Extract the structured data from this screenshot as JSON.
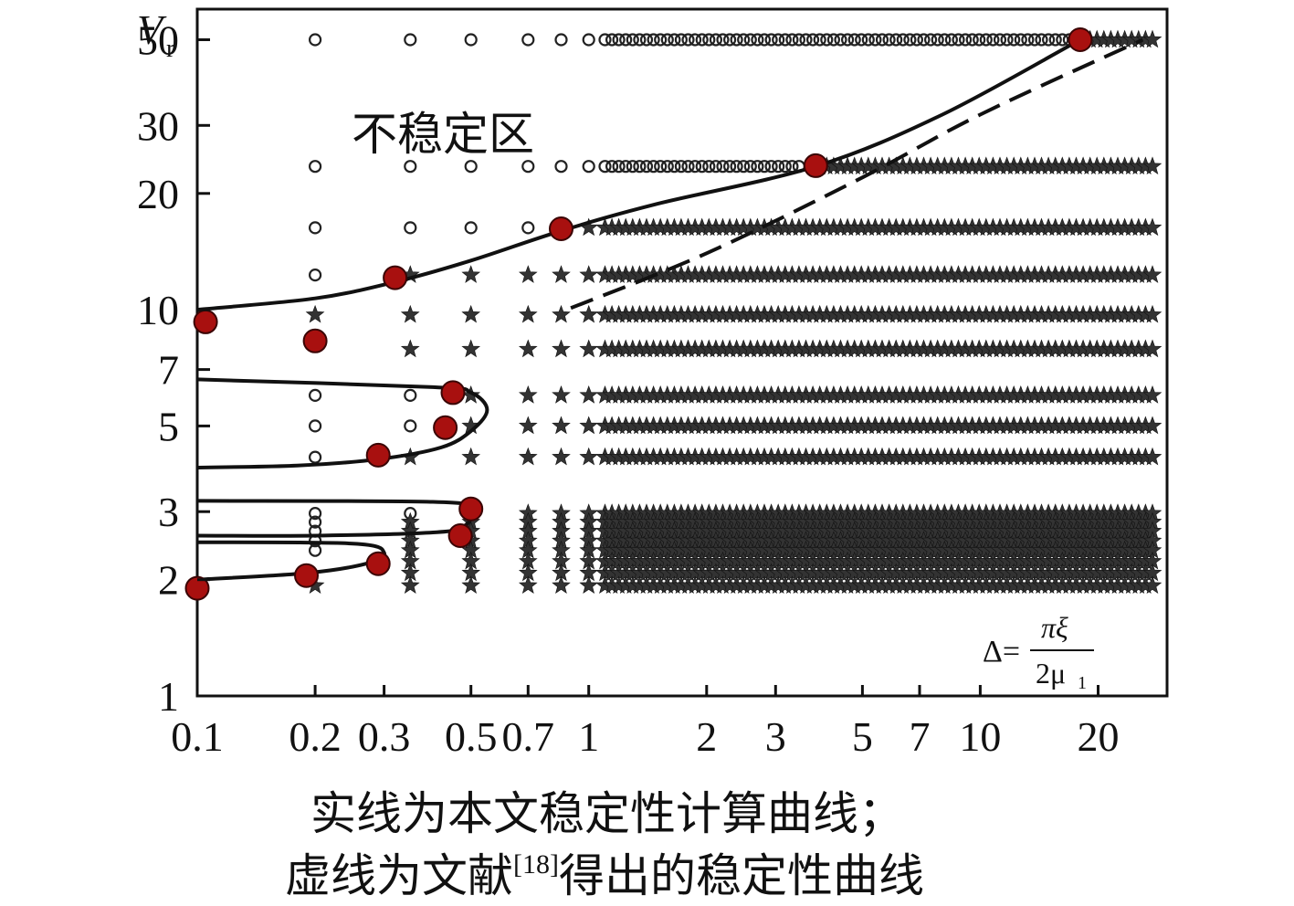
{
  "chart_data": {
    "type": "scatter",
    "x_scale": "log",
    "y_scale": "log",
    "xlim": [
      0.1,
      30
    ],
    "ylim": [
      1,
      60
    ],
    "ylabel_main": "V",
    "ylabel_sub": "r",
    "x_ticks": [
      {
        "value": 0.1,
        "label": "0.1"
      },
      {
        "value": 0.2,
        "label": "0.2"
      },
      {
        "value": 0.3,
        "label": "0.3"
      },
      {
        "value": 0.5,
        "label": "0.5"
      },
      {
        "value": 0.7,
        "label": "0.7"
      },
      {
        "value": 1,
        "label": "1"
      },
      {
        "value": 2,
        "label": "2"
      },
      {
        "value": 3,
        "label": "3"
      },
      {
        "value": 5,
        "label": "5"
      },
      {
        "value": 7,
        "label": "7"
      },
      {
        "value": 10,
        "label": "10"
      },
      {
        "value": 20,
        "label": "20"
      }
    ],
    "y_ticks": [
      {
        "value": 1,
        "label": "1"
      },
      {
        "value": 2,
        "label": "2"
      },
      {
        "value": 3,
        "label": "3"
      },
      {
        "value": 5,
        "label": "5"
      },
      {
        "value": 7,
        "label": "7"
      },
      {
        "value": 10,
        "label": "10"
      },
      {
        "value": 20,
        "label": "20"
      },
      {
        "value": 30,
        "label": "30"
      },
      {
        "value": 50,
        "label": "50"
      }
    ],
    "region_label": "不稳定区",
    "formula": {
      "lhs": "Δ=",
      "numerator": "πξ",
      "denominator": "2μ",
      "denominator_sub": "1"
    },
    "grid_x_sparse": [
      0.2,
      0.35,
      0.5,
      0.7,
      0.85,
      1.0
    ],
    "grid_x_dense_start": 1.1,
    "grid_x_dense_end": 28,
    "grid_x_dense_step_log": 0.0177,
    "rows": [
      {
        "y": 50,
        "circle_until": 18,
        "star_from": 18.5
      },
      {
        "y": 23.5,
        "circle_until": 3.5,
        "star_from": 3.6
      },
      {
        "y": 16.3,
        "circle_until": 0.7,
        "star_from": 0.95
      },
      {
        "y": 12.3,
        "circle_until": 0.2,
        "star_from": 0.35
      },
      {
        "y": 9.7,
        "circle_until": 0.05,
        "star_from": 0.2
      },
      {
        "y": 7.9,
        "circle_until": 0.05,
        "star_from": 0.35
      },
      {
        "y": 6.0,
        "circle_until": 0.35,
        "star_from": 0.5
      },
      {
        "y": 5.0,
        "circle_until": 0.35,
        "star_from": 0.5
      },
      {
        "y": 4.15,
        "circle_until": 0.2,
        "star_from": 0.35
      },
      {
        "y": 2.97,
        "circle_until": 0.35,
        "star_from": 0.5
      },
      {
        "y": 2.82,
        "circle_until": 0.2,
        "star_from": 0.35
      },
      {
        "y": 2.67,
        "circle_until": 0.2,
        "star_from": 0.35
      },
      {
        "y": 2.52,
        "circle_until": 0.2,
        "star_from": 0.35
      },
      {
        "y": 2.38,
        "circle_until": 0.2,
        "star_from": 0.35
      },
      {
        "y": 2.23,
        "circle_until": 0.05,
        "star_from": 0.35
      },
      {
        "y": 2.08,
        "circle_until": 0.05,
        "star_from": 0.35
      },
      {
        "y": 1.93,
        "circle_until": 0.05,
        "star_from": 0.2
      }
    ],
    "critical_points": [
      {
        "x": 0.105,
        "y": 9.3
      },
      {
        "x": 0.2,
        "y": 8.3
      },
      {
        "x": 0.32,
        "y": 12.1
      },
      {
        "x": 0.85,
        "y": 16.2
      },
      {
        "x": 3.8,
        "y": 23.6
      },
      {
        "x": 18,
        "y": 50
      },
      {
        "x": 0.45,
        "y": 6.1
      },
      {
        "x": 0.43,
        "y": 4.95
      },
      {
        "x": 0.29,
        "y": 4.2
      },
      {
        "x": 0.5,
        "y": 3.05
      },
      {
        "x": 0.47,
        "y": 2.6
      },
      {
        "x": 0.29,
        "y": 2.2
      },
      {
        "x": 0.19,
        "y": 2.05
      },
      {
        "x": 0.1,
        "y": 1.9
      }
    ],
    "solid_curve_upper": [
      [
        0.1,
        10.0
      ],
      [
        0.2,
        10.7
      ],
      [
        0.32,
        11.8
      ],
      [
        0.5,
        13.4
      ],
      [
        0.85,
        16.0
      ],
      [
        1.5,
        18.8
      ],
      [
        3.8,
        23.5
      ],
      [
        8,
        32
      ],
      [
        18,
        50
      ]
    ],
    "solid_loops": [
      [
        [
          0.1,
          6.6
        ],
        [
          0.4,
          6.3
        ],
        [
          0.5,
          6.1
        ],
        [
          0.55,
          5.5
        ],
        [
          0.5,
          4.85
        ],
        [
          0.42,
          4.4
        ],
        [
          0.29,
          4.1
        ],
        [
          0.18,
          3.95
        ],
        [
          0.1,
          3.9
        ]
      ],
      [
        [
          0.1,
          3.2
        ],
        [
          0.4,
          3.18
        ],
        [
          0.5,
          3.05
        ],
        [
          0.48,
          2.75
        ],
        [
          0.4,
          2.65
        ],
        [
          0.2,
          2.6
        ],
        [
          0.1,
          2.6
        ]
      ],
      [
        [
          0.1,
          2.5
        ],
        [
          0.25,
          2.48
        ],
        [
          0.3,
          2.35
        ],
        [
          0.27,
          2.2
        ],
        [
          0.19,
          2.08
        ],
        [
          0.1,
          2.0
        ]
      ]
    ],
    "dashed_curve": [
      [
        0.9,
        10.1
      ],
      [
        2,
        14
      ],
      [
        5,
        22
      ],
      [
        10,
        32
      ],
      [
        26,
        50
      ]
    ],
    "caption_line1": "实线为本文稳定性计算曲线；",
    "caption_line2_pre": "虚线为文献",
    "caption_line2_ref": "[18]",
    "caption_line2_post": "得出的稳定性曲线"
  }
}
